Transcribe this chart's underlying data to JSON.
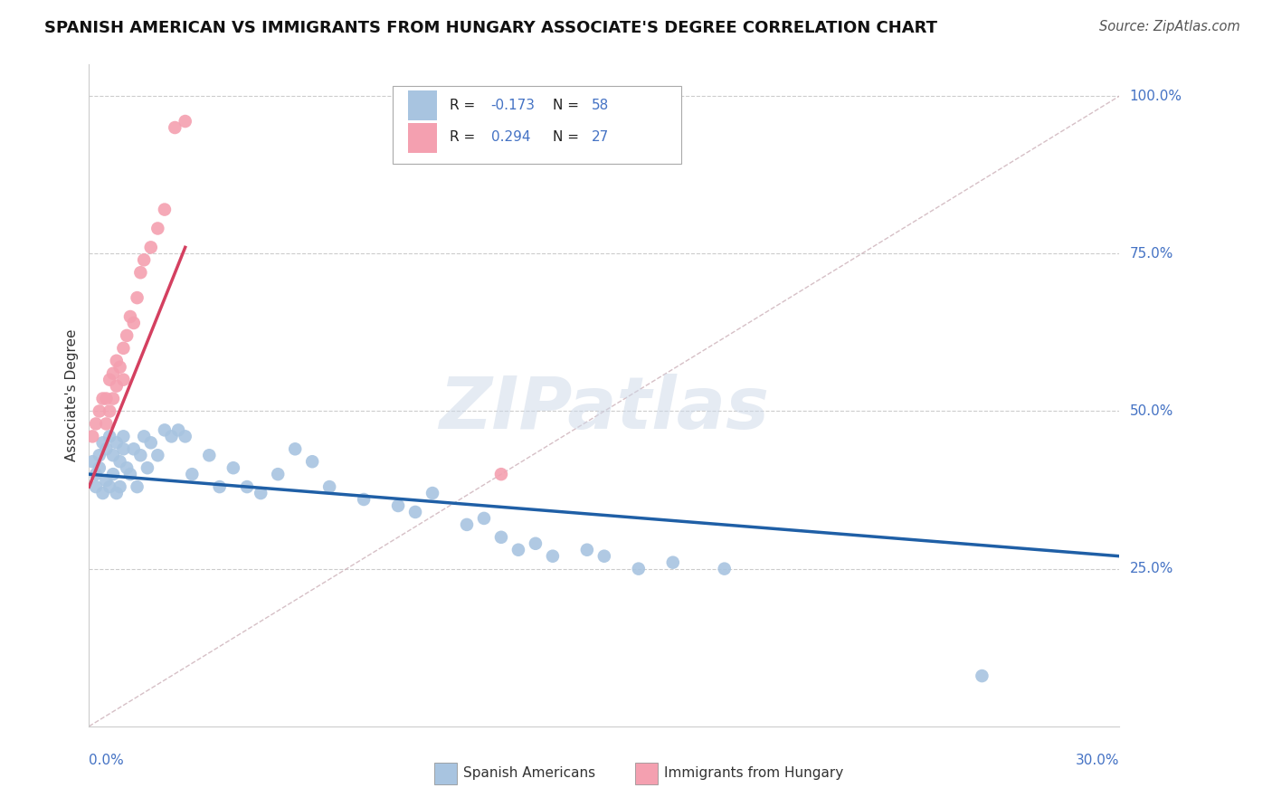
{
  "title": "SPANISH AMERICAN VS IMMIGRANTS FROM HUNGARY ASSOCIATE'S DEGREE CORRELATION CHART",
  "source": "Source: ZipAtlas.com",
  "ylabel": "Associate's Degree",
  "r_blue": -0.173,
  "n_blue": 58,
  "r_pink": 0.294,
  "n_pink": 27,
  "watermark": "ZIPatlas",
  "blue_color": "#a8c4e0",
  "pink_color": "#f4a0b0",
  "blue_line_color": "#1f5fa6",
  "pink_line_color": "#d44060",
  "dashed_line_color": "#ccb0b8",
  "legend_label_blue": "Spanish Americans",
  "legend_label_pink": "Immigrants from Hungary",
  "x_min": 0.0,
  "x_max": 0.3,
  "y_min": 0.0,
  "y_max": 1.05,
  "blue_points_x": [
    0.001,
    0.002,
    0.002,
    0.003,
    0.003,
    0.004,
    0.004,
    0.005,
    0.005,
    0.006,
    0.006,
    0.007,
    0.007,
    0.008,
    0.008,
    0.009,
    0.009,
    0.01,
    0.01,
    0.011,
    0.012,
    0.013,
    0.014,
    0.015,
    0.016,
    0.017,
    0.018,
    0.02,
    0.022,
    0.024,
    0.026,
    0.028,
    0.03,
    0.035,
    0.038,
    0.042,
    0.046,
    0.05,
    0.055,
    0.06,
    0.065,
    0.07,
    0.08,
    0.09,
    0.095,
    0.1,
    0.11,
    0.115,
    0.12,
    0.125,
    0.13,
    0.135,
    0.145,
    0.15,
    0.16,
    0.17,
    0.185,
    0.26
  ],
  "blue_points_y": [
    0.42,
    0.4,
    0.38,
    0.43,
    0.41,
    0.45,
    0.37,
    0.44,
    0.39,
    0.46,
    0.38,
    0.43,
    0.4,
    0.45,
    0.37,
    0.42,
    0.38,
    0.46,
    0.44,
    0.41,
    0.4,
    0.44,
    0.38,
    0.43,
    0.46,
    0.41,
    0.45,
    0.43,
    0.47,
    0.46,
    0.47,
    0.46,
    0.4,
    0.43,
    0.38,
    0.41,
    0.38,
    0.37,
    0.4,
    0.44,
    0.42,
    0.38,
    0.36,
    0.35,
    0.34,
    0.37,
    0.32,
    0.33,
    0.3,
    0.28,
    0.29,
    0.27,
    0.28,
    0.27,
    0.25,
    0.26,
    0.25,
    0.08
  ],
  "pink_points_x": [
    0.001,
    0.002,
    0.003,
    0.004,
    0.005,
    0.005,
    0.006,
    0.006,
    0.007,
    0.007,
    0.008,
    0.008,
    0.009,
    0.01,
    0.01,
    0.011,
    0.012,
    0.013,
    0.014,
    0.015,
    0.016,
    0.018,
    0.02,
    0.022,
    0.025,
    0.028,
    0.12
  ],
  "pink_points_y": [
    0.46,
    0.48,
    0.5,
    0.52,
    0.48,
    0.52,
    0.55,
    0.5,
    0.56,
    0.52,
    0.58,
    0.54,
    0.57,
    0.6,
    0.55,
    0.62,
    0.65,
    0.64,
    0.68,
    0.72,
    0.74,
    0.76,
    0.79,
    0.82,
    0.95,
    0.96,
    0.4
  ],
  "blue_line_x": [
    0.0,
    0.3
  ],
  "blue_line_y": [
    0.4,
    0.27
  ],
  "pink_line_x": [
    0.0,
    0.028
  ],
  "pink_line_y": [
    0.38,
    0.76
  ],
  "diag_line_x": [
    0.0,
    0.3
  ],
  "diag_line_y": [
    0.0,
    1.0
  ]
}
